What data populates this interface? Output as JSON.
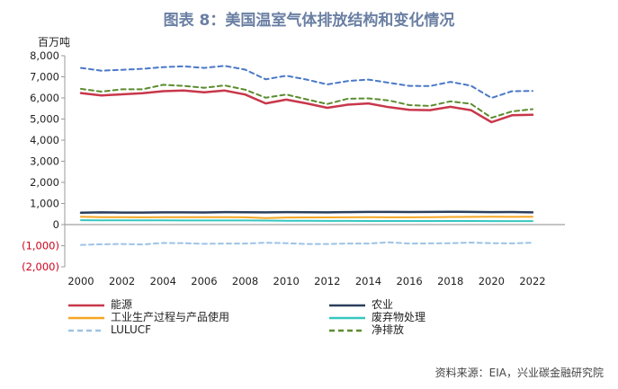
{
  "figure": {
    "title": "图表 8：美国温室气体排放结构和变化情况",
    "y_unit": "百万吨",
    "source": "资料来源：EIA，兴业碳金融研究院"
  },
  "chart_data": {
    "type": "line",
    "x": [
      2000,
      2001,
      2002,
      2003,
      2004,
      2005,
      2006,
      2007,
      2008,
      2009,
      2010,
      2011,
      2012,
      2013,
      2014,
      2015,
      2016,
      2017,
      2018,
      2019,
      2020,
      2021,
      2022
    ],
    "xticks": [
      2000,
      2002,
      2004,
      2006,
      2008,
      2010,
      2012,
      2014,
      2016,
      2018,
      2020,
      2022
    ],
    "ylim": [
      -2000,
      8000
    ],
    "yticks": [
      {
        "value": 8000,
        "label": "8,000"
      },
      {
        "value": 7000,
        "label": "7,000"
      },
      {
        "value": 6000,
        "label": "6,000"
      },
      {
        "value": 5000,
        "label": "5,000"
      },
      {
        "value": 4000,
        "label": "4,000"
      },
      {
        "value": 3000,
        "label": "3,000"
      },
      {
        "value": 2000,
        "label": "2,000"
      },
      {
        "value": 1000,
        "label": "1,000"
      },
      {
        "value": 0,
        "label": "0"
      },
      {
        "value": -1000,
        "label": "(1,000)"
      },
      {
        "value": -2000,
        "label": "(2,000)"
      }
    ],
    "negative_tick_color": "#d0021b",
    "series": [
      {
        "name": "能源",
        "color": "#c8374a",
        "dash": "solid",
        "width": 2.5,
        "values": [
          6230,
          6120,
          6170,
          6220,
          6320,
          6350,
          6270,
          6350,
          6160,
          5740,
          5920,
          5740,
          5530,
          5680,
          5740,
          5560,
          5440,
          5420,
          5580,
          5420,
          4850,
          5180,
          5200
        ]
      },
      {
        "name": "农业",
        "color": "#2b3f5c",
        "dash": "solid",
        "width": 2.5,
        "values": [
          560,
          580,
          570,
          570,
          580,
          580,
          575,
          590,
          585,
          580,
          590,
          585,
          580,
          590,
          600,
          600,
          595,
          600,
          610,
          600,
          590,
          595,
          580
        ]
      },
      {
        "name": "工业生产过程与产品使用",
        "color": "#f5a623",
        "dash": "solid",
        "width": 2,
        "values": [
          370,
          355,
          350,
          345,
          350,
          350,
          350,
          355,
          345,
          310,
          335,
          340,
          340,
          345,
          350,
          345,
          345,
          350,
          360,
          365,
          370,
          365,
          370
        ]
      },
      {
        "name": "废弃物处理",
        "color": "#35c7c0",
        "dash": "solid",
        "width": 2,
        "values": [
          210,
          205,
          200,
          200,
          200,
          195,
          195,
          195,
          195,
          190,
          185,
          180,
          175,
          175,
          170,
          170,
          170,
          170,
          170,
          170,
          165,
          165,
          165
        ]
      },
      {
        "name": "LULUCF",
        "color": "#9dc3e6",
        "dash": "dashed",
        "width": 2,
        "values": [
          -960,
          -930,
          -920,
          -940,
          -870,
          -880,
          -910,
          -900,
          -900,
          -860,
          -880,
          -920,
          -920,
          -900,
          -900,
          -840,
          -900,
          -890,
          -880,
          -850,
          -880,
          -890,
          -860
        ]
      },
      {
        "name": "净排放",
        "color": "#5b8c2e",
        "dash": "dashed",
        "width": 2,
        "values": [
          6430,
          6300,
          6410,
          6410,
          6620,
          6570,
          6480,
          6590,
          6390,
          6010,
          6160,
          5930,
          5710,
          5960,
          5980,
          5880,
          5660,
          5620,
          5840,
          5720,
          5060,
          5360,
          5470
        ]
      },
      {
        "name": "",
        "color": "#4a78c8",
        "dash": "dashed",
        "width": 2,
        "values": [
          7420,
          7290,
          7330,
          7380,
          7460,
          7500,
          7420,
          7520,
          7340,
          6880,
          7050,
          6870,
          6640,
          6800,
          6870,
          6720,
          6570,
          6560,
          6760,
          6580,
          6000,
          6320,
          6330
        ]
      }
    ]
  },
  "legend": {
    "items": [
      {
        "label": "能源",
        "color": "#c8374a",
        "dash": "solid"
      },
      {
        "label": "农业",
        "color": "#2b3f5c",
        "dash": "solid"
      },
      {
        "label": "工业生产过程与产品使用",
        "color": "#f5a623",
        "dash": "solid"
      },
      {
        "label": "废弃物处理",
        "color": "#35c7c0",
        "dash": "solid"
      },
      {
        "label": "LULUCF",
        "color": "#9dc3e6",
        "dash": "dashed"
      },
      {
        "label": "净排放",
        "color": "#5b8c2e",
        "dash": "dashed"
      }
    ]
  }
}
